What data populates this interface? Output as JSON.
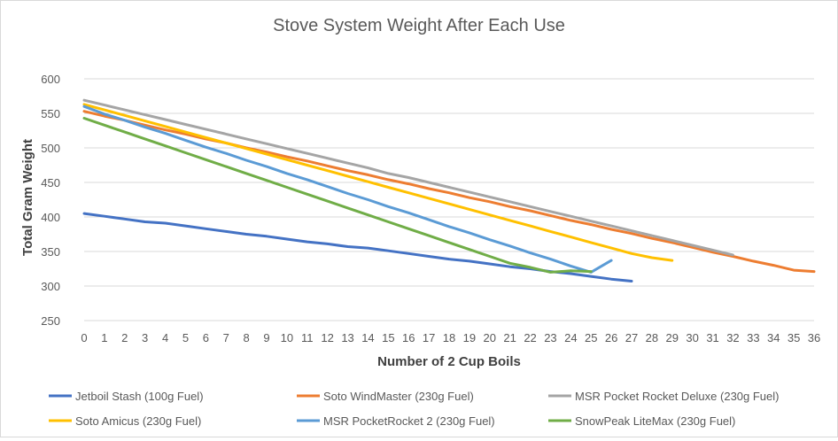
{
  "chart_data": {
    "type": "line",
    "title": "Stove System Weight After Each Use",
    "xlabel": "Number of 2 Cup Boils",
    "ylabel": "Total Gram Weight",
    "xlim": [
      0,
      36
    ],
    "ylim": [
      250,
      600
    ],
    "yticks": [
      250,
      300,
      350,
      400,
      450,
      500,
      550,
      600
    ],
    "xticks": [
      0,
      1,
      2,
      3,
      4,
      5,
      6,
      7,
      8,
      9,
      10,
      11,
      12,
      13,
      14,
      15,
      16,
      17,
      18,
      19,
      20,
      21,
      22,
      23,
      24,
      25,
      26,
      27,
      28,
      29,
      30,
      31,
      32,
      33,
      34,
      35,
      36
    ],
    "grid": true,
    "legend_position": "bottom",
    "series": [
      {
        "name": "Jetboil Stash (100g Fuel)",
        "color": "#4472C4",
        "x": [
          0,
          1,
          2,
          3,
          4,
          5,
          6,
          7,
          8,
          9,
          10,
          11,
          12,
          13,
          14,
          15,
          16,
          17,
          18,
          19,
          20,
          21,
          22,
          23,
          24,
          25,
          26,
          27
        ],
        "values": [
          405,
          401,
          397,
          393,
          391,
          387,
          383,
          379,
          375,
          372,
          368,
          364,
          361,
          357,
          355,
          351,
          347,
          343,
          339,
          336,
          332,
          328,
          325,
          321,
          318,
          314,
          310,
          307
        ]
      },
      {
        "name": "Soto WindMaster (230g Fuel)",
        "color": "#ED7D31",
        "x": [
          0,
          1,
          2,
          3,
          4,
          5,
          6,
          7,
          8,
          9,
          10,
          11,
          12,
          13,
          14,
          15,
          16,
          17,
          18,
          19,
          20,
          21,
          22,
          23,
          24,
          25,
          26,
          27,
          28,
          29,
          30,
          31,
          32,
          33,
          34,
          35,
          36
        ],
        "values": [
          553,
          546,
          540,
          533,
          526,
          520,
          513,
          507,
          500,
          494,
          487,
          481,
          474,
          467,
          461,
          454,
          448,
          441,
          435,
          428,
          422,
          415,
          409,
          402,
          395,
          389,
          382,
          376,
          369,
          363,
          356,
          349,
          343,
          336,
          330,
          323,
          321
        ]
      },
      {
        "name": "MSR Pocket Rocket Deluxe (230g Fuel)",
        "color": "#A5A5A5",
        "x": [
          0,
          1,
          2,
          3,
          4,
          5,
          6,
          7,
          8,
          9,
          10,
          11,
          12,
          13,
          14,
          15,
          16,
          17,
          18,
          19,
          20,
          21,
          22,
          23,
          24,
          25,
          26,
          27,
          28,
          29,
          30,
          31,
          32
        ],
        "values": [
          569,
          562,
          555,
          548,
          541,
          534,
          527,
          520,
          513,
          506,
          499,
          492,
          485,
          478,
          471,
          463,
          457,
          450,
          443,
          436,
          429,
          422,
          415,
          408,
          401,
          394,
          387,
          380,
          373,
          366,
          359,
          352,
          345
        ]
      },
      {
        "name": "Soto Amicus (230g Fuel)",
        "color": "#FFC000",
        "x": [
          0,
          1,
          2,
          3,
          4,
          5,
          6,
          7,
          8,
          9,
          10,
          11,
          12,
          13,
          14,
          15,
          16,
          17,
          18,
          19,
          20,
          21,
          22,
          23,
          24,
          25,
          26,
          27,
          28,
          29
        ],
        "values": [
          563,
          555,
          547,
          539,
          531,
          523,
          515,
          507,
          499,
          491,
          483,
          475,
          467,
          459,
          451,
          443,
          435,
          427,
          419,
          411,
          403,
          395,
          387,
          379,
          371,
          363,
          355,
          347,
          341,
          337
        ]
      },
      {
        "name": "MSR PocketRocket 2 (230g Fuel)",
        "color": "#5B9BD5",
        "x": [
          0,
          1,
          2,
          3,
          4,
          5,
          6,
          7,
          8,
          9,
          10,
          11,
          12,
          13,
          14,
          15,
          16,
          17,
          18,
          19,
          20,
          21,
          22,
          23,
          24,
          25,
          26
        ],
        "values": [
          560,
          549,
          540,
          530,
          521,
          511,
          501,
          492,
          482,
          473,
          463,
          454,
          444,
          434,
          425,
          415,
          406,
          396,
          386,
          377,
          367,
          358,
          348,
          339,
          329,
          320,
          337
        ]
      },
      {
        "name": "SnowPeak LiteMax (230g Fuel)",
        "color": "#70AD47",
        "x": [
          0,
          1,
          2,
          3,
          4,
          5,
          6,
          7,
          8,
          9,
          10,
          11,
          12,
          13,
          14,
          15,
          16,
          17,
          18,
          19,
          20,
          21,
          22,
          23,
          24,
          25
        ],
        "values": [
          543,
          533,
          523,
          513,
          503,
          493,
          483,
          473,
          463,
          453,
          443,
          433,
          423,
          413,
          403,
          393,
          383,
          373,
          363,
          353,
          343,
          333,
          327,
          320,
          322,
          321
        ]
      }
    ]
  }
}
